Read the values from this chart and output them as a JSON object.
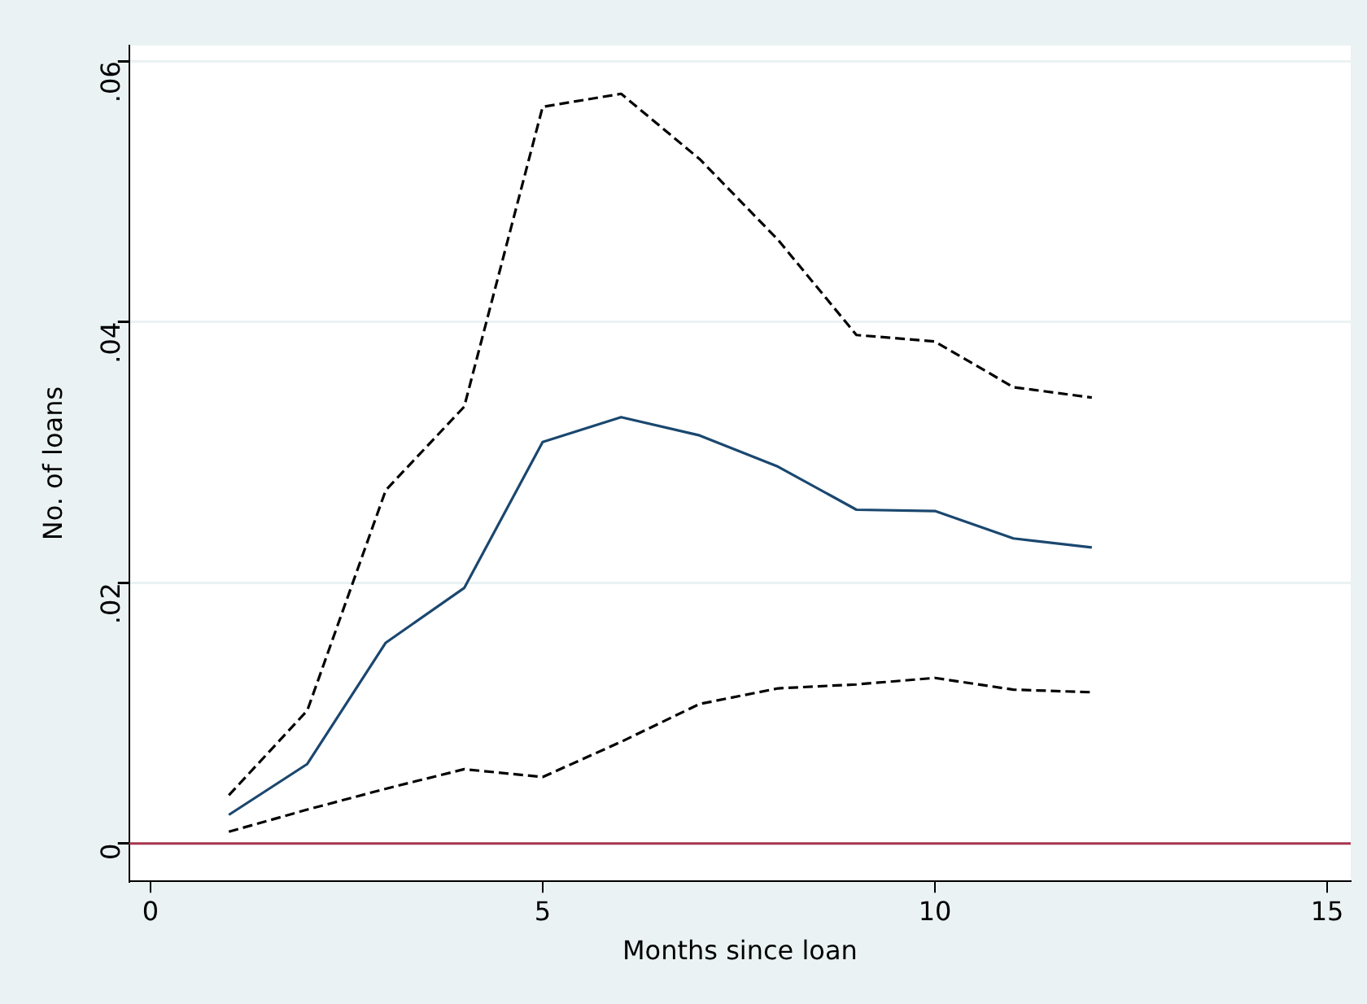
{
  "chart_data": {
    "type": "line",
    "xlabel": "Months since loan",
    "ylabel": "No. of loans",
    "x": [
      1,
      2,
      3,
      4,
      5,
      6,
      7,
      8,
      9,
      10,
      11,
      12
    ],
    "series": [
      {
        "color": "#1a476f",
        "line_style": "solid",
        "values": [
          0.0022,
          0.0061,
          0.0154,
          0.0196,
          0.0308,
          0.0327,
          0.0313,
          0.0289,
          0.0256,
          0.0255,
          0.0234,
          0.0227
        ]
      },
      {
        "color": "#000000",
        "line_style": "dashed",
        "values": [
          0.0037,
          0.0102,
          0.0271,
          0.0335,
          0.0565,
          0.0575,
          0.0525,
          0.0463,
          0.039,
          0.0385,
          0.035,
          0.0342
        ]
      },
      {
        "color": "#000000",
        "line_style": "dashed",
        "values": [
          0.0009,
          0.0026,
          0.0042,
          0.0057,
          0.0051,
          0.0078,
          0.0107,
          0.0119,
          0.0122,
          0.0127,
          0.0118,
          0.0116
        ]
      }
    ],
    "xlim": [
      -0.27,
      15.3
    ],
    "xticks": [
      0,
      5,
      10,
      15
    ],
    "ylim": [
      -0.0029,
      0.0612
    ],
    "yticks": [
      {
        "value": 0,
        "label": "0"
      },
      {
        "value": 0.02,
        "label": ".02"
      },
      {
        "value": 0.04,
        "label": ".04"
      },
      {
        "value": 0.06,
        "label": ".06"
      }
    ],
    "ref_lines": [
      {
        "axis": "y",
        "value": 0,
        "color": "#a8344e"
      }
    ],
    "grid": "y",
    "legend": false,
    "marker": "none"
  }
}
